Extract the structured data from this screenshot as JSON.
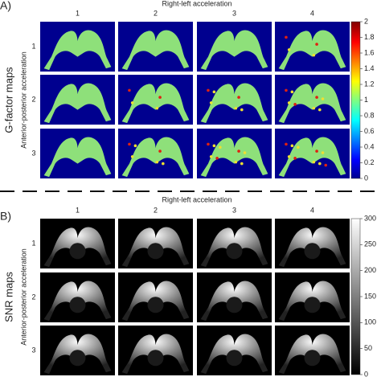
{
  "panels": [
    {
      "label": "A)",
      "title": "Right-left acceleration",
      "side_label": "G-factor maps",
      "y_label": "Anterior-posterior acceleration",
      "column_labels": [
        "1",
        "2",
        "3",
        "4"
      ],
      "row_labels": [
        "1",
        "2",
        "3"
      ],
      "colorbar": {
        "lim": [
          0,
          2
        ],
        "ticks": [
          0,
          0.2,
          0.4,
          0.6,
          0.8,
          1,
          1.2,
          1.4,
          1.6,
          1.8,
          2
        ]
      }
    },
    {
      "label": "B)",
      "title": "Right-left acceleration",
      "side_label": "SNR maps",
      "y_label": "Anterior-posterior acceleration",
      "column_labels": [
        "1",
        "2",
        "3",
        "4"
      ],
      "row_labels": [
        "1",
        "2",
        "3"
      ],
      "colorbar": {
        "lim": [
          0,
          300
        ],
        "ticks": [
          0,
          50,
          100,
          150,
          200,
          250,
          300
        ]
      }
    }
  ]
}
